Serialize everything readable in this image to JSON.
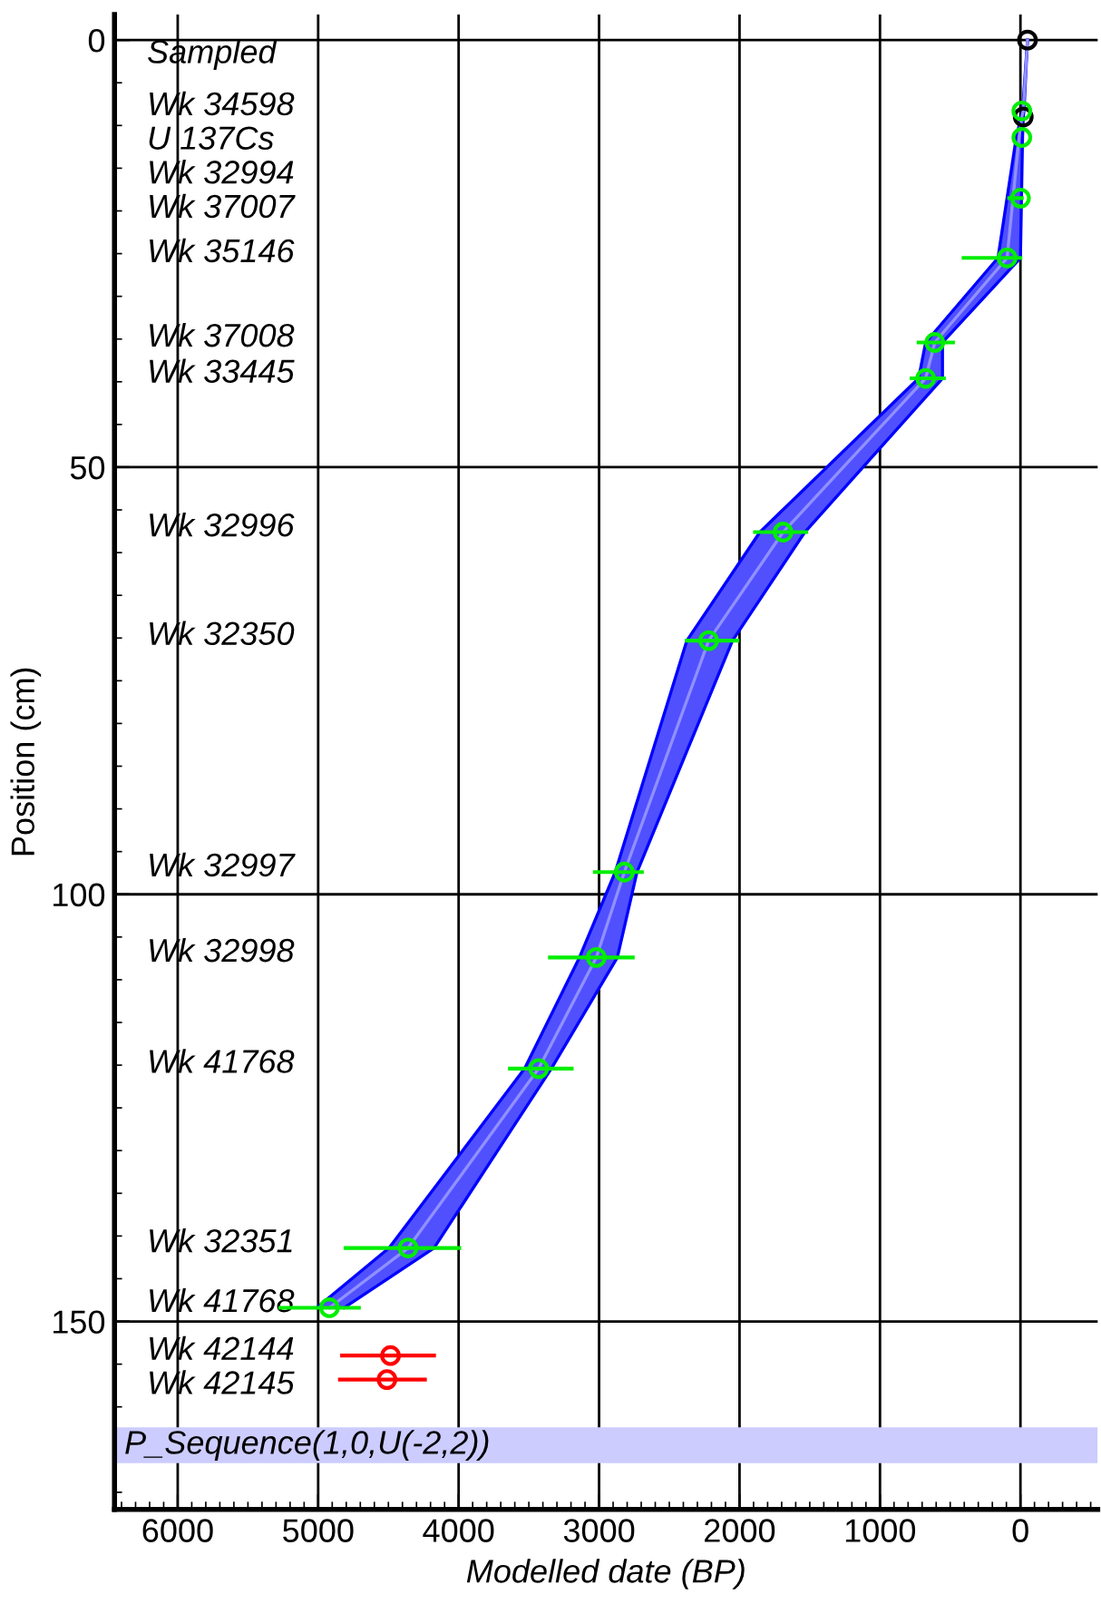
{
  "chart_data": {
    "type": "line",
    "xlabel": "Modelled date (BP)",
    "ylabel": "Position (cm)",
    "xlim": [
      6450,
      -550
    ],
    "ylim": [
      172,
      -3
    ],
    "xticks": [
      6000,
      5000,
      4000,
      3000,
      2000,
      1000,
      0
    ],
    "yticks": [
      0,
      50,
      100,
      150
    ],
    "grid": true,
    "series": [
      {
        "color": "#0000ff",
        "x": [
          -50,
          -25,
          -20,
          -15,
          0,
          555,
          555,
          1535,
          2050,
          2730,
          2870,
          3340,
          4175,
          4815
        ],
        "values": [
          0,
          8.3,
          9,
          11.4,
          25.5,
          35.4,
          39.6,
          57.6,
          70.3,
          97.4,
          107.4,
          120.4,
          141.4,
          148.4
        ]
      },
      {
        "color": "#0000ff",
        "x": [
          -50,
          -15,
          -5,
          30,
          160,
          675,
          725,
          1855,
          2375,
          2885,
          3140,
          3530,
          4495,
          5010
        ],
        "values": [
          0,
          8.3,
          9,
          11.4,
          25.5,
          35.4,
          39.6,
          57.6,
          70.3,
          97.4,
          107.4,
          120.4,
          141.4,
          148.4
        ]
      },
      {
        "color": "#9090ff",
        "x": [
          -50,
          -20,
          -10,
          10,
          95,
          610,
          675,
          1690,
          2220,
          2820,
          3020,
          3430,
          4360,
          4920
        ],
        "values": [
          0,
          8.3,
          9,
          11.4,
          25.5,
          35.4,
          39.6,
          57.6,
          70.3,
          97.4,
          107.4,
          120.4,
          141.4,
          148.4
        ]
      },
      {
        "type": "scatter",
        "marker": "circle",
        "color": "#000000",
        "x": [
          -50,
          -20
        ],
        "values": [
          0,
          9
        ]
      },
      {
        "type": "scatter",
        "marker": "circle",
        "color": "#00ee00",
        "x": [
          -10,
          -10,
          0,
          95,
          610,
          675,
          1690,
          2220,
          2820,
          3020,
          3430,
          4360,
          4920
        ],
        "values": [
          8.3,
          11.4,
          18.5,
          25.5,
          35.4,
          39.6,
          57.6,
          70.3,
          97.4,
          107.4,
          120.4,
          141.4,
          148.4
        ],
        "xerrors": [
          null,
          null,
          [
            -10,
            80
          ],
          [
            0,
            405
          ],
          [
            480,
            725
          ],
          [
            545,
            775
          ],
          [
            1525,
            1890
          ],
          [
            2015,
            2375
          ],
          [
            2695,
            3030
          ],
          [
            2760,
            3350
          ],
          [
            3195,
            3635
          ],
          [
            3995,
            4805
          ],
          [
            4710,
            5270
          ]
        ]
      },
      {
        "type": "scatter",
        "marker": "circle",
        "color": "#ff0000",
        "x": [
          4485,
          4510
        ],
        "values": [
          154,
          156.8
        ],
        "xerrors": [
          [
            4175,
            4830
          ],
          [
            4240,
            4845
          ]
        ]
      }
    ],
    "annotations": [
      "Sampled",
      "Wk 34598",
      "U 137Cs",
      "Wk 32994",
      "Wk 37007",
      "Wk 35146",
      "Wk 37008",
      "Wk 33445",
      "Wk 32996",
      "Wk 32350",
      "Wk 32997",
      "Wk 32998",
      "Wk 41768",
      "Wk 32351",
      "Wk 41768",
      "Wk 42144",
      "Wk 42145"
    ],
    "bands": [
      {
        "axis": "y",
        "from": 162.4,
        "to": 166.6,
        "label": "P_Sequence(1,0,U(-2,2))",
        "color": "#ccccff"
      }
    ]
  }
}
